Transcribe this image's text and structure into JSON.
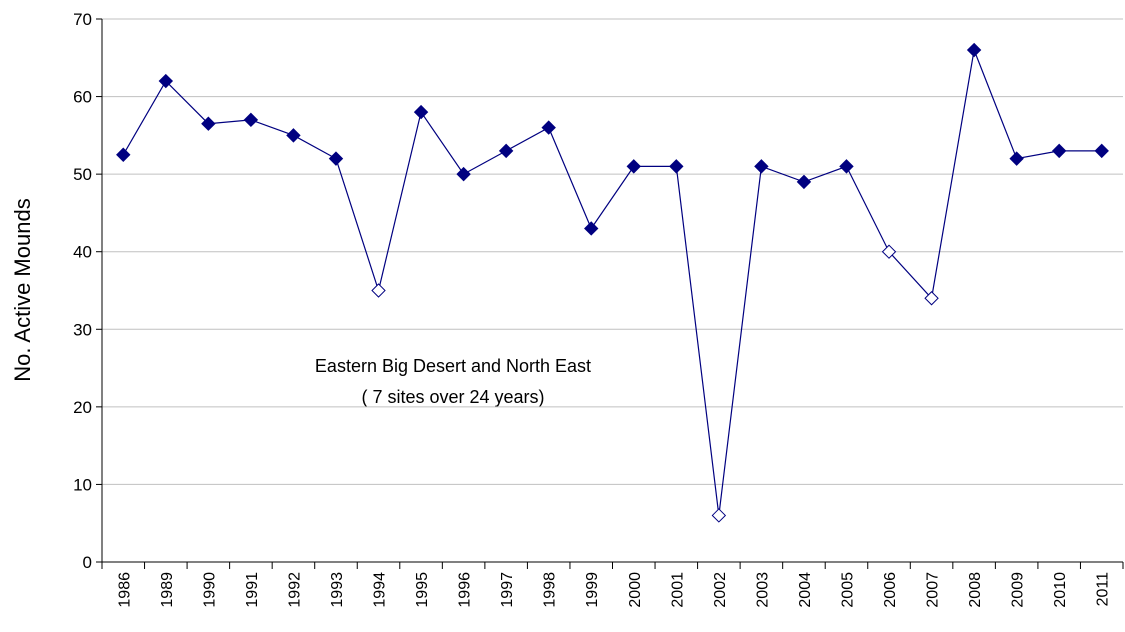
{
  "chart_data": {
    "type": "line",
    "y_label": "No. Active Mounds",
    "annotation": [
      "Eastern Big Desert and North East",
      "( 7 sites over 24 years)"
    ],
    "categories": [
      "1986",
      "1989",
      "1990",
      "1991",
      "1992",
      "1993",
      "1994",
      "1995",
      "1996",
      "1997",
      "1998",
      "1999",
      "2000",
      "2001",
      "2002",
      "2003",
      "2004",
      "2005",
      "2006",
      "2007",
      "2008",
      "2009",
      "2010",
      "2011"
    ],
    "values": [
      52.5,
      62,
      56.5,
      57,
      55,
      52,
      35,
      58,
      50,
      53,
      56,
      43,
      51,
      51,
      6,
      51,
      49,
      51,
      40,
      34,
      66,
      52,
      53,
      53
    ],
    "color": "#000080",
    "marker_fills": [
      "#000080",
      "#000080",
      "#000080",
      "#000080",
      "#000080",
      "#000080",
      "#ffffff",
      "#000080",
      "#000080",
      "#000080",
      "#000080",
      "#000080",
      "#000080",
      "#000080",
      "#ffffff",
      "#000080",
      "#000080",
      "#000080",
      "#ffffff",
      "#ffffff",
      "#000080",
      "#000080",
      "#000080",
      "#000080"
    ],
    "ylim": [
      0,
      70
    ],
    "yticks": [
      0,
      10,
      20,
      30,
      40,
      50,
      60,
      70
    ],
    "grid": true
  }
}
